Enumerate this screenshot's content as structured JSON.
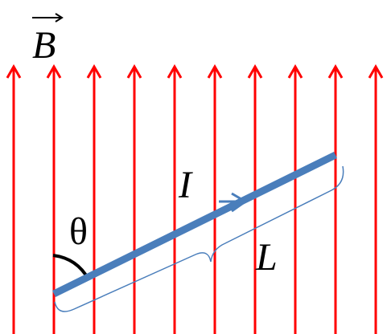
{
  "labels": {
    "field": "B",
    "current": "I",
    "angle": "θ",
    "length": "L"
  }
}
